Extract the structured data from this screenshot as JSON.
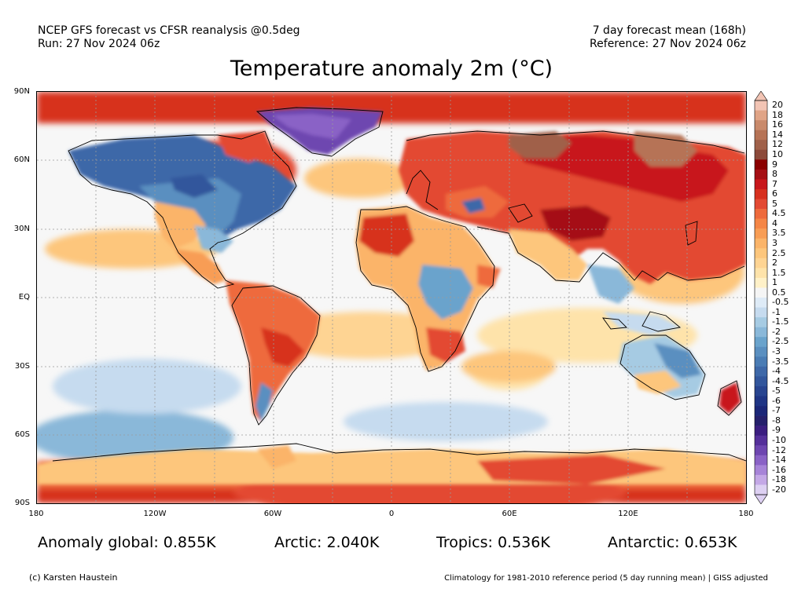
{
  "header": {
    "left_line1": "NCEP GFS forecast vs CFSR reanalysis @0.5deg",
    "left_line2": "Run: 27 Nov 2024 06z",
    "right_line1": "7 day forecast mean (168h)",
    "right_line2": "Reference: 27 Nov 2024 06z"
  },
  "title": "Temperature anomaly 2m (°C)",
  "lat_labels": [
    "90N",
    "60N",
    "30N",
    "EQ",
    "30S",
    "60S",
    "90S"
  ],
  "lon_labels": [
    "180",
    "120W",
    "60W",
    "0",
    "60E",
    "120E",
    "180"
  ],
  "colorbar": {
    "labels": [
      "20",
      "18",
      "16",
      "14",
      "12",
      "10",
      "9",
      "8",
      "7",
      "6",
      "5",
      "4.5",
      "4",
      "3.5",
      "3",
      "2.5",
      "2",
      "1.5",
      "1",
      "0.5",
      "-0.5",
      "-1",
      "-1.5",
      "-2",
      "-2.5",
      "-3",
      "-3.5",
      "-4",
      "-4.5",
      "-5",
      "-6",
      "-7",
      "-8",
      "-9",
      "-10",
      "-12",
      "-14",
      "-16",
      "-18",
      "-20"
    ],
    "colors": [
      "#f2c4b4",
      "#e0a486",
      "#c98a6b",
      "#b67356",
      "#a0614a",
      "#8c4a3a",
      "#8b0000",
      "#a50f15",
      "#c8171c",
      "#d7301f",
      "#e34a33",
      "#ee6a3c",
      "#f58646",
      "#f89d55",
      "#fbb469",
      "#fdc67c",
      "#fed493",
      "#fee3aa",
      "#fff1c8",
      "#f5f5f5",
      "#deebf7",
      "#c6dbef",
      "#a6cbe3",
      "#8ab8d9",
      "#6aa3cc",
      "#5a8fc0",
      "#4a7cb4",
      "#3e68a8",
      "#32569c",
      "#284590",
      "#1f3585",
      "#1b2778",
      "#25206b",
      "#3b1e80",
      "#55309a",
      "#6e46b0",
      "#8a62c6",
      "#a784d8",
      "#c4a8e6",
      "#ddd0f2"
    ]
  },
  "stats": {
    "global": "Anomaly global: 0.855K",
    "arctic": "Arctic: 2.040K",
    "tropics": "Tropics: 0.536K",
    "antarctic": "Antarctic: 0.653K"
  },
  "footer": {
    "copyright": "(c) Karsten Haustein",
    "note": "Climatology for 1981-2010 reference period (5 day running mean) | GISS adjusted"
  }
}
